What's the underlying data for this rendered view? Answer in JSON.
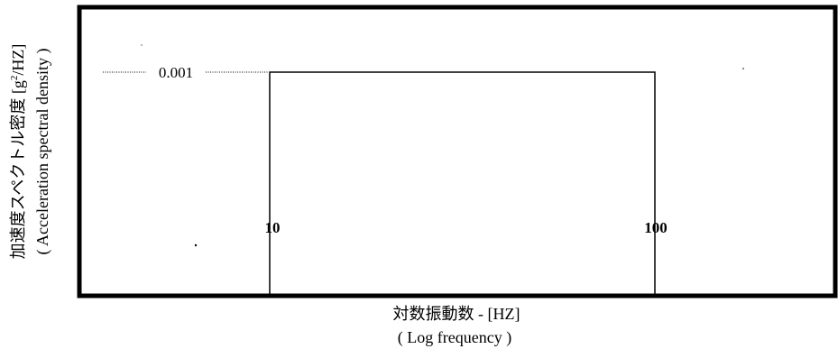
{
  "chart_data": {
    "type": "line",
    "title": "",
    "ylabel_jp": "加速度スペクトル密度 [g",
    "ylabel_sup": "2",
    "ylabel_unit": "/HZ]",
    "ylabel_en": "( Acceleration spectral density )",
    "xlabel_jp": "対数振動数 - [HZ]",
    "xlabel_en": "( Log frequency )",
    "x_scale": "log",
    "series": [
      {
        "x": [
          10,
          10,
          100,
          100
        ],
        "y": [
          0,
          0.001,
          0.001,
          0
        ]
      }
    ],
    "annotations": {
      "level_label": "0.001",
      "x_left_label": "10",
      "x_right_label": "100"
    },
    "grid": false
  }
}
